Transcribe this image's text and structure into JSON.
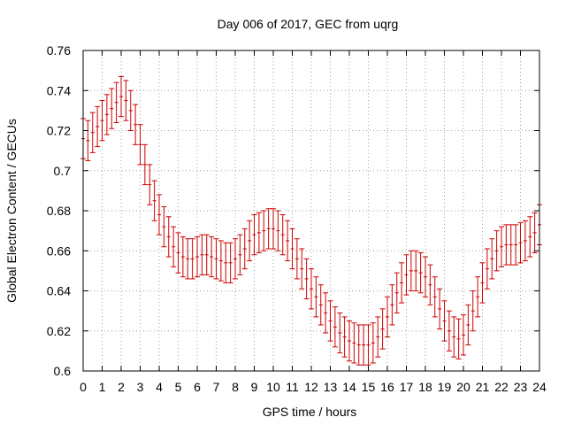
{
  "chart_data": {
    "type": "scatter",
    "title": "Day 006 of 2017, GEC from uqrg",
    "xlabel": "GPS time / hours",
    "ylabel": "Global Electron Content / GECUs",
    "xlim": [
      0,
      24
    ],
    "ylim": [
      0.6,
      0.76
    ],
    "xticks": [
      "0",
      "1",
      "2",
      "3",
      "4",
      "5",
      "6",
      "7",
      "8",
      "9",
      "10",
      "11",
      "12",
      "13",
      "14",
      "15",
      "16",
      "17",
      "18",
      "19",
      "20",
      "21",
      "22",
      "23",
      "24"
    ],
    "yticks": [
      "0.6",
      "0.62",
      "0.64",
      "0.66",
      "0.68",
      "0.7",
      "0.72",
      "0.74",
      "0.76"
    ],
    "grid": true,
    "error_bars": true,
    "series_color": "#cc0000",
    "x": [
      0.0,
      0.25,
      0.5,
      0.75,
      1.0,
      1.25,
      1.5,
      1.75,
      2.0,
      2.25,
      2.5,
      2.75,
      3.0,
      3.25,
      3.5,
      3.75,
      4.0,
      4.25,
      4.5,
      4.75,
      5.0,
      5.25,
      5.5,
      5.75,
      6.0,
      6.25,
      6.5,
      6.75,
      7.0,
      7.25,
      7.5,
      7.75,
      8.0,
      8.25,
      8.5,
      8.75,
      9.0,
      9.25,
      9.5,
      9.75,
      10.0,
      10.25,
      10.5,
      10.75,
      11.0,
      11.25,
      11.5,
      11.75,
      12.0,
      12.25,
      12.5,
      12.75,
      13.0,
      13.25,
      13.5,
      13.75,
      14.0,
      14.25,
      14.5,
      14.75,
      15.0,
      15.25,
      15.5,
      15.75,
      16.0,
      16.25,
      16.5,
      16.75,
      17.0,
      17.25,
      17.5,
      17.75,
      18.0,
      18.25,
      18.5,
      18.75,
      19.0,
      19.25,
      19.5,
      19.75,
      20.0,
      20.25,
      20.5,
      20.75,
      21.0,
      21.25,
      21.5,
      21.75,
      22.0,
      22.25,
      22.5,
      22.75,
      23.0,
      23.25,
      23.5,
      23.75,
      24.0
    ],
    "y": [
      0.716,
      0.715,
      0.719,
      0.722,
      0.725,
      0.728,
      0.731,
      0.734,
      0.737,
      0.735,
      0.73,
      0.723,
      0.713,
      0.703,
      0.693,
      0.685,
      0.678,
      0.672,
      0.667,
      0.662,
      0.659,
      0.657,
      0.656,
      0.656,
      0.657,
      0.658,
      0.658,
      0.657,
      0.656,
      0.655,
      0.654,
      0.654,
      0.656,
      0.658,
      0.661,
      0.665,
      0.668,
      0.669,
      0.67,
      0.671,
      0.671,
      0.67,
      0.668,
      0.665,
      0.661,
      0.656,
      0.651,
      0.646,
      0.641,
      0.637,
      0.633,
      0.629,
      0.625,
      0.622,
      0.619,
      0.617,
      0.615,
      0.614,
      0.613,
      0.613,
      0.613,
      0.614,
      0.617,
      0.621,
      0.627,
      0.633,
      0.639,
      0.644,
      0.648,
      0.65,
      0.65,
      0.649,
      0.647,
      0.643,
      0.637,
      0.631,
      0.625,
      0.62,
      0.617,
      0.616,
      0.618,
      0.623,
      0.63,
      0.637,
      0.644,
      0.651,
      0.656,
      0.66,
      0.662,
      0.663,
      0.663,
      0.663,
      0.664,
      0.665,
      0.667,
      0.669,
      0.673
    ],
    "yerr": 0.01
  }
}
